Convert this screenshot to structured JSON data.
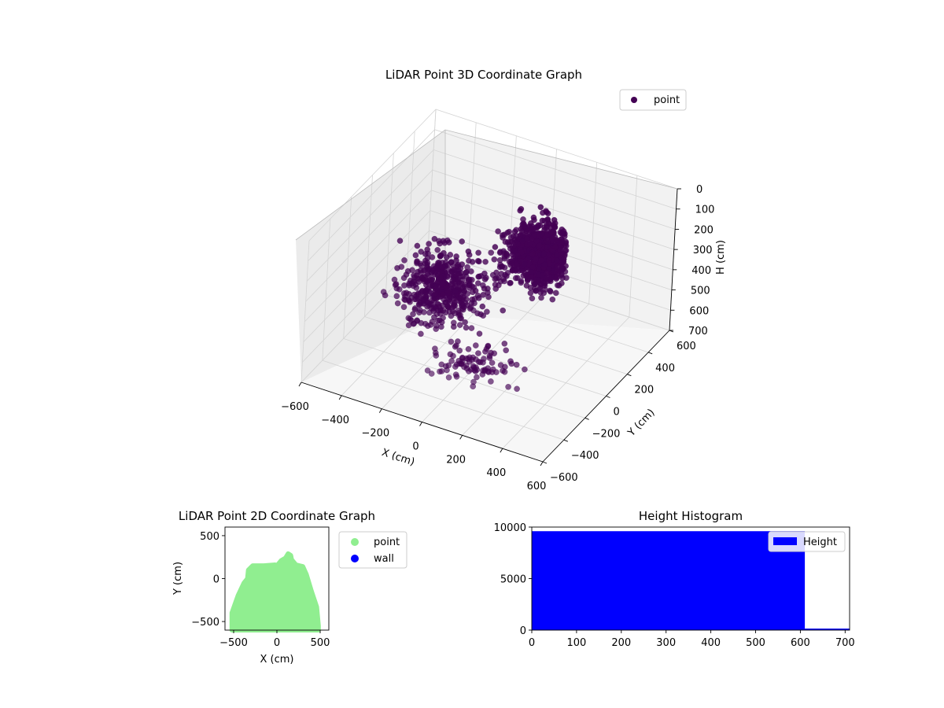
{
  "chart_data": [
    {
      "type": "scatter3d",
      "title": "LiDAR Point 3D Coordinate Graph",
      "xlabel": "X (cm)",
      "ylabel": "Y (cm)",
      "zlabel": "H (cm)",
      "xlim": [
        -600,
        600
      ],
      "ylim": [
        -600,
        600
      ],
      "zlim": [
        0,
        700
      ],
      "z_inverted": true,
      "xticks": [
        "−600",
        "−400",
        "−200",
        "0",
        "200",
        "400",
        "600"
      ],
      "yticks": [
        "−600",
        "−400",
        "−200",
        "0",
        "200",
        "400",
        "600"
      ],
      "zticks": [
        "0",
        "100",
        "200",
        "300",
        "400",
        "500",
        "600",
        "700"
      ],
      "legend": {
        "position": "top-right",
        "entries": [
          "point"
        ]
      },
      "series": [
        {
          "name": "point",
          "color": "#440154",
          "clusters": [
            {
              "center": [
                120,
                250,
                300
              ],
              "spread": [
                230,
                240,
                170
              ],
              "count": 900
            },
            {
              "center": [
                -250,
                60,
                480
              ],
              "spread": [
                280,
                280,
                190
              ],
              "count": 500
            },
            {
              "center": [
                60,
                -180,
                620
              ],
              "spread": [
                260,
                220,
                60
              ],
              "count": 90
            }
          ]
        }
      ],
      "grid": true
    },
    {
      "type": "scatter",
      "title": "LiDAR Point 2D Coordinate Graph",
      "xlabel": "X (cm)",
      "ylabel": "Y (cm)",
      "xlim": [
        -600,
        600
      ],
      "ylim": [
        -600,
        600
      ],
      "xticks": [
        "−500",
        "0",
        "500"
      ],
      "yticks": [
        "−500",
        "0",
        "500"
      ],
      "legend": {
        "position": "outside-right",
        "entries": [
          "point",
          "wall"
        ]
      },
      "series": [
        {
          "name": "point",
          "color": "#90ee90",
          "outline": [
            [
              -520,
              -550
            ],
            [
              -520,
              -400
            ],
            [
              -450,
              -200
            ],
            [
              -380,
              -50
            ],
            [
              -340,
              0
            ],
            [
              -330,
              100
            ],
            [
              -280,
              150
            ],
            [
              -150,
              150
            ],
            [
              -20,
              160
            ],
            [
              0,
              150
            ],
            [
              50,
              210
            ],
            [
              100,
              240
            ],
            [
              130,
              290
            ],
            [
              160,
              270
            ],
            [
              170,
              220
            ],
            [
              220,
              160
            ],
            [
              300,
              140
            ],
            [
              340,
              50
            ],
            [
              400,
              -150
            ],
            [
              460,
              -330
            ],
            [
              480,
              -550
            ]
          ]
        },
        {
          "name": "wall",
          "color": "#0000ff",
          "points": []
        }
      ],
      "grid": false
    },
    {
      "type": "bar",
      "title": "Height Histogram",
      "xlabel": "",
      "ylabel": "",
      "xlim": [
        0,
        710
      ],
      "ylim": [
        0,
        10000
      ],
      "xticks": [
        "0",
        "100",
        "200",
        "300",
        "400",
        "500",
        "600",
        "700"
      ],
      "yticks": [
        "0",
        "5000",
        "10000"
      ],
      "legend": {
        "position": "top-right",
        "entries": [
          "Height"
        ]
      },
      "series": [
        {
          "name": "Height",
          "color": "#0000ff",
          "bins": [
            {
              "x0": 0,
              "x1": 610,
              "count": 9600
            },
            {
              "x0": 610,
              "x1": 710,
              "count": 150
            }
          ]
        }
      ],
      "grid": false
    }
  ]
}
